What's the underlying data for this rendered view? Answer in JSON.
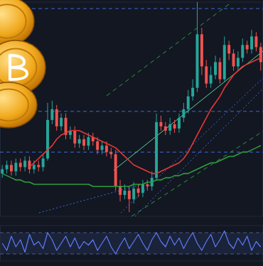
{
  "chart_data": [
    {
      "type": "candlestick",
      "categories": [
        null,
        null,
        null,
        null,
        null,
        null,
        null,
        null,
        null,
        null,
        null,
        null,
        null,
        null,
        null,
        null,
        null,
        null,
        null,
        null,
        null,
        null,
        null,
        null,
        null,
        null,
        null,
        null,
        null,
        null,
        null,
        null,
        null,
        null,
        null,
        null,
        null,
        null,
        null,
        null,
        null,
        null,
        null,
        null,
        null,
        null,
        null,
        null,
        null,
        null,
        null,
        null,
        null,
        null,
        null,
        null,
        null,
        null
      ],
      "open": [
        20,
        22,
        24,
        21,
        25,
        23,
        26,
        22,
        24,
        23,
        27,
        45,
        50,
        42,
        46,
        38,
        40,
        34,
        36,
        33,
        37,
        35,
        31,
        33,
        30,
        29,
        14,
        10,
        12,
        8,
        13,
        11,
        15,
        14,
        18,
        44,
        42,
        40,
        43,
        41,
        46,
        50,
        56,
        60,
        85,
        70,
        62,
        66,
        72,
        64,
        80,
        76,
        70,
        74,
        80,
        78,
        84,
        79
      ],
      "high": [
        24,
        26,
        26,
        27,
        27,
        28,
        28,
        26,
        26,
        29,
        53,
        54,
        52,
        48,
        48,
        42,
        42,
        38,
        38,
        39,
        39,
        37,
        35,
        35,
        32,
        31,
        17,
        15,
        14,
        16,
        15,
        17,
        17,
        21,
        48,
        47,
        44,
        46,
        45,
        48,
        53,
        59,
        64,
        100,
        88,
        73,
        70,
        75,
        74,
        84,
        82,
        78,
        77,
        83,
        82,
        87,
        86,
        81
      ],
      "low": [
        18,
        20,
        19,
        19,
        21,
        21,
        20,
        20,
        21,
        21,
        26,
        43,
        40,
        40,
        36,
        36,
        32,
        32,
        31,
        31,
        33,
        29,
        29,
        28,
        27,
        12,
        7,
        8,
        2,
        6,
        9,
        9,
        12,
        12,
        17,
        40,
        38,
        38,
        39,
        39,
        44,
        48,
        54,
        58,
        66,
        60,
        60,
        64,
        62,
        63,
        73,
        68,
        68,
        72,
        76,
        76,
        77,
        68
      ],
      "close": [
        22,
        24,
        21,
        25,
        23,
        26,
        22,
        24,
        23,
        27,
        45,
        50,
        42,
        46,
        38,
        40,
        34,
        36,
        33,
        37,
        35,
        31,
        33,
        30,
        29,
        14,
        10,
        12,
        8,
        13,
        11,
        15,
        14,
        18,
        44,
        42,
        40,
        43,
        41,
        46,
        50,
        56,
        60,
        85,
        70,
        62,
        66,
        72,
        64,
        80,
        76,
        70,
        74,
        80,
        78,
        84,
        79,
        72
      ],
      "series": [
        {
          "type": "line",
          "color": "#e53935",
          "values": [
            null,
            null,
            null,
            null,
            null,
            null,
            23,
            25,
            27,
            29,
            31,
            33,
            36,
            38,
            39,
            40,
            40,
            40,
            39,
            38,
            37,
            36,
            35,
            34,
            33,
            32,
            30,
            28,
            26,
            24,
            23,
            22,
            21,
            20,
            20,
            21,
            22,
            23,
            24,
            25,
            27,
            30,
            34,
            38,
            42,
            46,
            50,
            53,
            56,
            60,
            63,
            66,
            68,
            70,
            71,
            72,
            73,
            74
          ]
        },
        {
          "type": "line",
          "color": "#2e9e3e",
          "values": [
            20,
            19,
            18,
            17,
            17,
            16,
            16,
            15,
            15,
            15,
            15,
            15,
            15,
            15,
            15,
            15,
            15,
            15,
            15,
            15,
            14,
            14,
            14,
            14,
            14,
            14,
            14,
            14,
            14,
            15,
            15,
            15,
            16,
            16,
            17,
            17,
            18,
            18,
            19,
            19,
            20,
            20,
            21,
            22,
            23,
            24,
            25,
            25,
            26,
            27,
            28,
            28,
            29,
            30,
            30,
            31,
            32,
            33
          ]
        }
      ],
      "ylim": [
        0,
        100
      ],
      "yticks": [
        30,
        49,
        97
      ],
      "grid": true,
      "tick_labels": false
    },
    {
      "type": "line",
      "categories": [
        null,
        null,
        null,
        null,
        null,
        null,
        null,
        null,
        null,
        null,
        null,
        null,
        null,
        null,
        null,
        null,
        null,
        null,
        null,
        null,
        null,
        null,
        null,
        null,
        null,
        null,
        null,
        null,
        null,
        null,
        null,
        null,
        null,
        null,
        null,
        null,
        null,
        null,
        null,
        null,
        null,
        null,
        null,
        null,
        null,
        null,
        null,
        null,
        null,
        null,
        null,
        null,
        null,
        null,
        null,
        null,
        null,
        null
      ],
      "series": [
        {
          "color": "#5c7cfa",
          "values": [
            50,
            30,
            70,
            40,
            60,
            25,
            75,
            45,
            55,
            35,
            80,
            60,
            30,
            50,
            70,
            40,
            65,
            35,
            55,
            45,
            60,
            30,
            50,
            70,
            40,
            20,
            45,
            65,
            35,
            55,
            75,
            50,
            30,
            60,
            80,
            55,
            40,
            70,
            45,
            65,
            35,
            60,
            80,
            50,
            30,
            55,
            75,
            40,
            60,
            85,
            50,
            35,
            65,
            45,
            70,
            30,
            55,
            40
          ]
        }
      ],
      "ylim": [
        0,
        100
      ],
      "yticks": [
        20,
        80
      ],
      "grid": true,
      "tick_labels": false
    }
  ]
}
